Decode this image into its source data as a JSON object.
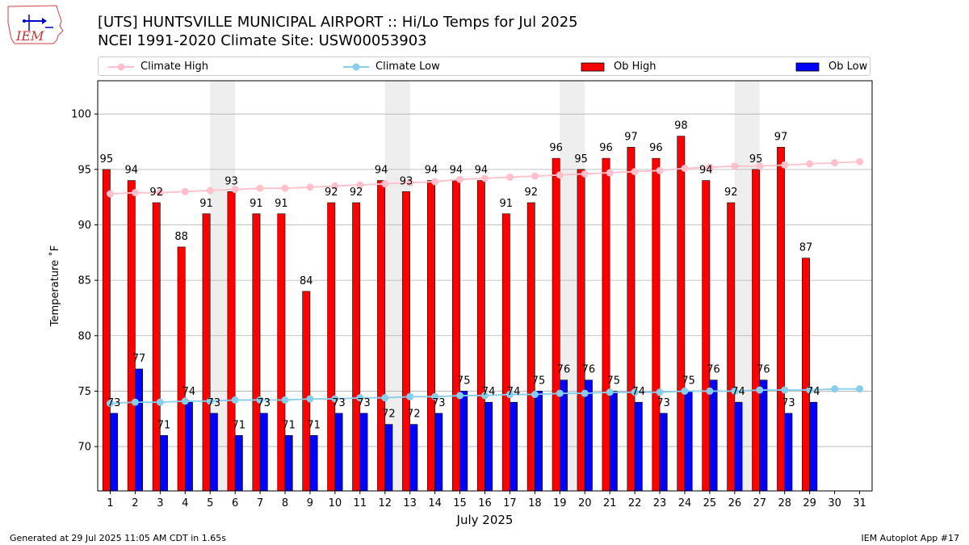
{
  "header": {
    "logo_text": "IEM",
    "title_line1": "[UTS] HUNTSVILLE MUNICIPAL AIRPORT :: Hi/Lo Temps for Jul 2025",
    "title_line2": "NCEI 1991-2020 Climate Site: USW00053903"
  },
  "legend": {
    "items": [
      "Climate High",
      "Climate Low",
      "Ob High",
      "Ob Low"
    ],
    "placement": "top, above plot"
  },
  "footer": {
    "left": "Generated at 29 Jul 2025 11:05 AM CDT in 1.65s",
    "right": "IEM Autoplot App #17"
  },
  "colors": {
    "ob_high": "#ff0000",
    "ob_low": "#0000ff",
    "climate_high": "#ffc0cb",
    "climate_low": "#87ceeb",
    "weekend_shade": "#eeeeee",
    "grid": "#b0b0b0"
  },
  "chart_data": {
    "type": "bar",
    "xlabel": "July 2025",
    "ylabel": "Temperature ˚F",
    "ylim": [
      66,
      103
    ],
    "yticks": [
      70,
      75,
      80,
      85,
      90,
      95,
      100
    ],
    "grid": "horizontal",
    "categories": [
      "1",
      "2",
      "3",
      "4",
      "5",
      "6",
      "7",
      "8",
      "9",
      "10",
      "11",
      "12",
      "13",
      "14",
      "15",
      "16",
      "17",
      "18",
      "19",
      "20",
      "21",
      "22",
      "23",
      "24",
      "25",
      "26",
      "27",
      "28",
      "29",
      "30",
      "31"
    ],
    "shaded_days": [
      [
        5,
        6
      ],
      [
        12,
        13
      ],
      [
        19,
        20
      ],
      [
        26,
        27
      ]
    ],
    "series": [
      {
        "name": "Ob High",
        "kind": "bar",
        "values": [
          95,
          94,
          92,
          88,
          91,
          93,
          91,
          91,
          84,
          92,
          92,
          94,
          93,
          94,
          94,
          94,
          91,
          92,
          96,
          95,
          96,
          97,
          96,
          98,
          94,
          92,
          95,
          97,
          87,
          null,
          null
        ]
      },
      {
        "name": "Ob Low",
        "kind": "bar",
        "values": [
          73,
          77,
          71,
          74,
          73,
          71,
          73,
          71,
          71,
          73,
          73,
          72,
          72,
          73,
          75,
          74,
          74,
          75,
          76,
          76,
          75,
          74,
          73,
          75,
          76,
          74,
          76,
          73,
          74,
          null,
          null
        ]
      },
      {
        "name": "Climate High",
        "kind": "line",
        "values": [
          92.8,
          92.9,
          92.9,
          93.0,
          93.1,
          93.2,
          93.3,
          93.3,
          93.4,
          93.5,
          93.6,
          93.7,
          93.8,
          93.9,
          94.1,
          94.2,
          94.3,
          94.4,
          94.5,
          94.6,
          94.7,
          94.8,
          94.9,
          95.1,
          95.2,
          95.3,
          95.3,
          95.4,
          95.5,
          95.6,
          95.7
        ]
      },
      {
        "name": "Climate Low",
        "kind": "line",
        "values": [
          73.9,
          74.0,
          74.0,
          74.1,
          74.1,
          74.2,
          74.2,
          74.2,
          74.3,
          74.3,
          74.4,
          74.4,
          74.5,
          74.5,
          74.6,
          74.6,
          74.7,
          74.7,
          74.8,
          74.8,
          74.9,
          74.9,
          74.9,
          75.0,
          75.0,
          75.0,
          75.1,
          75.1,
          75.1,
          75.2,
          75.2
        ]
      }
    ]
  }
}
